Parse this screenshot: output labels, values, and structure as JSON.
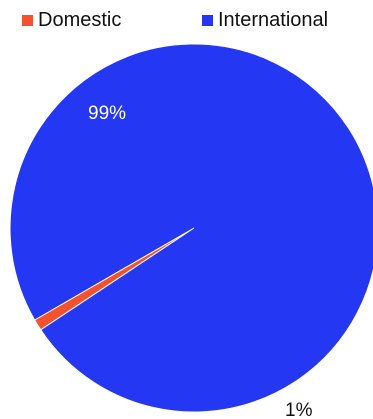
{
  "chart_data": {
    "type": "pie",
    "title": "",
    "legend_position": "top",
    "slices": [
      {
        "name": "Domestic",
        "value": 1,
        "label": "1%",
        "color": "#f4512c",
        "label_color": "#111111"
      },
      {
        "name": "International",
        "value": 99,
        "label": "99%",
        "color": "#2437f2",
        "label_color": "#ffffff"
      }
    ]
  }
}
